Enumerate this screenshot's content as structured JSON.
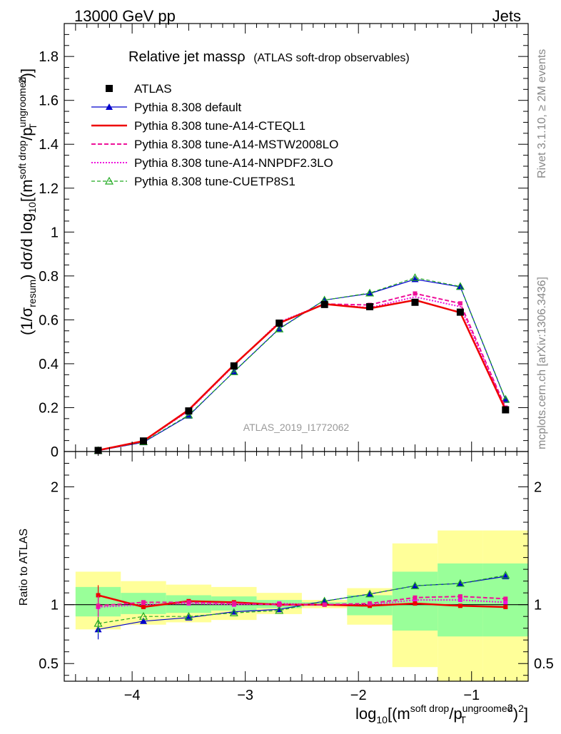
{
  "header": {
    "left": "13000 GeV pp",
    "right": "Jets"
  },
  "side_labels": {
    "rivet": "Rivet 3.1.10, ≥ 2M events",
    "mcplots": "mcplots.cern.ch [arXiv:1306.3436]"
  },
  "title": {
    "main": "Relative jet massρ",
    "sub": "(ATLAS soft-drop observables)"
  },
  "analysis_tag": "ATLAS_2019_I1772062",
  "axes": {
    "y_main_label": "(1/σresum) dσ/d log10[(msoft drop/pTungroomed)2]",
    "y_ratio_label": "Ratio to ATLAS",
    "x_label": "log10[(msoft drop/pTungroomed)2]"
  },
  "chart_data": [
    {
      "type": "line",
      "panel": "main",
      "xlim": [
        -4.6,
        -0.5
      ],
      "ylim": [
        0,
        1.95
      ],
      "x_ticks": [
        -4,
        -3,
        -2,
        -1
      ],
      "x_tick_labels": [
        "−4",
        "−3",
        "−2",
        "−1"
      ],
      "y_ticks": [
        0,
        0.2,
        0.4,
        0.6,
        0.8,
        1,
        1.2,
        1.4,
        1.6,
        1.8
      ],
      "y_tick_labels": [
        "0",
        "0.2",
        "0.4",
        "0.6",
        "0.8",
        "1",
        "1.2",
        "1.4",
        "1.6",
        "1.8"
      ],
      "x": [
        -4.3,
        -3.9,
        -3.5,
        -3.1,
        -2.7,
        -2.3,
        -1.9,
        -1.5,
        -1.1,
        -0.7
      ],
      "legend_position": "top-left",
      "series": [
        {
          "name": "ATLAS",
          "color": "#000000",
          "style": "marker-square",
          "values": [
            0.005,
            0.048,
            0.185,
            0.39,
            0.585,
            0.67,
            0.66,
            0.68,
            0.635,
            0.19
          ]
        },
        {
          "name": "Pythia 8.308 default",
          "color": "#0000cc",
          "style": "solid-triangle",
          "values": [
            0.004,
            0.042,
            0.163,
            0.364,
            0.56,
            0.69,
            0.72,
            0.785,
            0.75,
            0.235
          ]
        },
        {
          "name": "Pythia 8.308 tune-A14-CTEQL1",
          "color": "#ee0000",
          "style": "solid-thick",
          "values": [
            0.006,
            0.048,
            0.19,
            0.395,
            0.585,
            0.672,
            0.652,
            0.69,
            0.633,
            0.19
          ]
        },
        {
          "name": "Pythia 8.308 tune-A14-MSTW2008LO",
          "color": "#ee1199",
          "style": "dashed",
          "values": [
            0.005,
            0.047,
            0.188,
            0.395,
            0.585,
            0.672,
            0.668,
            0.72,
            0.675,
            0.2
          ]
        },
        {
          "name": "Pythia 8.308 tune-A14-NNPDF2.3LO",
          "color": "#ee11dd",
          "style": "dotted",
          "values": [
            0.005,
            0.047,
            0.186,
            0.392,
            0.59,
            0.672,
            0.655,
            0.705,
            0.66,
            0.196
          ]
        },
        {
          "name": "Pythia 8.308 tune-CUETP8S1",
          "color": "#22aa22",
          "style": "dashed-open-triangle",
          "values": [
            0.004,
            0.044,
            0.166,
            0.363,
            0.558,
            0.69,
            0.722,
            0.792,
            0.752,
            0.238
          ]
        }
      ]
    },
    {
      "type": "line",
      "panel": "ratio",
      "xlim": [
        -4.6,
        -0.5
      ],
      "ylim": [
        0.35,
        2.3
      ],
      "y_ticks": [
        0.5,
        1,
        2
      ],
      "y_tick_labels": [
        "0.5",
        "1",
        "2"
      ],
      "x": [
        -4.3,
        -3.9,
        -3.5,
        -3.1,
        -2.7,
        -2.3,
        -1.9,
        -1.5,
        -1.1,
        -0.7
      ],
      "bands": {
        "edges": [
          -4.5,
          -4.1,
          -3.7,
          -3.3,
          -2.9,
          -2.5,
          -2.1,
          -1.7,
          -1.3,
          -0.9,
          -0.5
        ],
        "yellow_low": [
          0.79,
          0.83,
          0.85,
          0.87,
          0.92,
          0.97,
          0.83,
          0.47,
          0.35,
          0.35
        ],
        "yellow_high": [
          1.28,
          1.2,
          1.17,
          1.15,
          1.1,
          1.04,
          1.14,
          1.52,
          1.63,
          1.63
        ],
        "green_low": [
          0.9,
          0.92,
          0.93,
          0.95,
          0.97,
          0.99,
          0.91,
          0.78,
          0.73,
          0.73
        ],
        "green_high": [
          1.15,
          1.1,
          1.08,
          1.07,
          1.04,
          1.02,
          1.08,
          1.28,
          1.35,
          1.35
        ]
      },
      "series": [
        {
          "name": "Pythia 8.308 default",
          "color": "#0000cc",
          "style": "solid-triangle",
          "values": [
            0.79,
            0.86,
            0.89,
            0.94,
            0.96,
            1.03,
            1.09,
            1.16,
            1.18,
            1.24
          ]
        },
        {
          "name": "Pythia 8.308 tune-A14-CTEQL1",
          "color": "#ee0000",
          "style": "solid-thick",
          "values": [
            1.08,
            0.98,
            1.03,
            1.02,
            1.0,
            1.0,
            0.99,
            1.01,
            0.99,
            0.98
          ]
        },
        {
          "name": "Pythia 8.308 tune-A14-MSTW2008LO",
          "color": "#ee1199",
          "style": "dashed",
          "values": [
            0.99,
            1.02,
            1.02,
            1.01,
            1.0,
            1.0,
            1.01,
            1.06,
            1.07,
            1.05
          ]
        },
        {
          "name": "Pythia 8.308 tune-A14-NNPDF2.3LO",
          "color": "#ee11dd",
          "style": "dotted",
          "values": [
            0.98,
            1.0,
            1.01,
            1.0,
            1.01,
            1.0,
            1.0,
            1.04,
            1.04,
            1.02
          ]
        },
        {
          "name": "Pythia 8.308 tune-CUETP8S1",
          "color": "#22aa22",
          "style": "dashed-open-triangle",
          "values": [
            0.84,
            0.9,
            0.9,
            0.93,
            0.95,
            1.03,
            1.09,
            1.16,
            1.18,
            1.25
          ]
        }
      ]
    }
  ]
}
